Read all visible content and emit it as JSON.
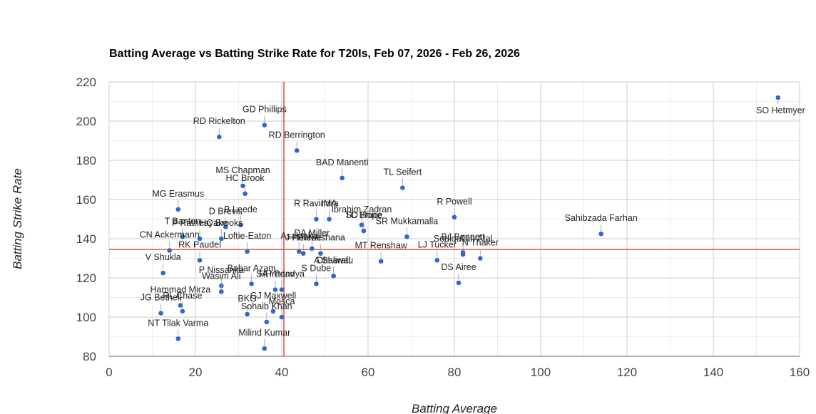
{
  "chart_data": {
    "type": "scatter",
    "title": "Batting Average vs Batting Strike Rate for T20Is, Feb 07, 2026 - Feb 26, 2026",
    "xlabel": "Batting Average",
    "ylabel": "Batting Strike Rate",
    "xlim": [
      0,
      160
    ],
    "ylim": [
      80,
      220
    ],
    "x_ticks": [
      0,
      20,
      40,
      60,
      80,
      100,
      120,
      140,
      160
    ],
    "y_ticks": [
      80,
      100,
      120,
      140,
      160,
      180,
      200,
      220
    ],
    "grid": true,
    "reference_lines": {
      "x": 40.5,
      "y": 134.5,
      "color": "#d93025"
    },
    "point_color": "#3366cc",
    "points": [
      {
        "label": "SO Hetmyer",
        "x": 155,
        "y": 212
      },
      {
        "label": "GD Phillips",
        "x": 36,
        "y": 198
      },
      {
        "label": "RD Rickelton",
        "x": 25.5,
        "y": 192
      },
      {
        "label": "RD Berrington",
        "x": 43.5,
        "y": 185
      },
      {
        "label": "BAD Manenti",
        "x": 54,
        "y": 171
      },
      {
        "label": "MS Chapman",
        "x": 31,
        "y": 167
      },
      {
        "label": "TL Seifert",
        "x": 68,
        "y": 166
      },
      {
        "label": "HC Brook",
        "x": 31.5,
        "y": 163
      },
      {
        "label": "MG Erasmus",
        "x": 16,
        "y": 155
      },
      {
        "label": "R Powell",
        "x": 80,
        "y": 151
      },
      {
        "label": "R Ravindra",
        "x": 48,
        "y": 150
      },
      {
        "label": "IMA",
        "x": 51,
        "y": 150
      },
      {
        "label": "Ibrahim Zadran",
        "x": 58.5,
        "y": 147
      },
      {
        "label": "B Leede",
        "x": 30.5,
        "y": 147
      },
      {
        "label": "D Brevis",
        "x": 27,
        "y": 146
      },
      {
        "label": "TC Bruce",
        "x": 59,
        "y": 144
      },
      {
        "label": "SD Hope",
        "x": 59,
        "y": 144
      },
      {
        "label": "Sahibzada Farhan",
        "x": 114,
        "y": 142.5
      },
      {
        "label": "T Banton",
        "x": 17,
        "y": 141
      },
      {
        "label": "SR Mukkamalla",
        "x": 69,
        "y": 141
      },
      {
        "label": "DA Miller",
        "x": 47,
        "y": 135
      },
      {
        "label": "HC Brooks",
        "x": 26,
        "y": 140
      },
      {
        "label": "Loftie-Eaton",
        "x": 32,
        "y": 133.5
      },
      {
        "label": "P Rathnayake",
        "x": 21,
        "y": 140
      },
      {
        "label": "BJ Bennett",
        "x": 82,
        "y": 133
      },
      {
        "label": "MT Renshaw",
        "x": 63,
        "y": 128.5
      },
      {
        "label": "N Thaker",
        "x": 86,
        "y": 130
      },
      {
        "label": "Sediqullah Atal",
        "x": 82,
        "y": 132
      },
      {
        "label": "Asalanka",
        "x": 44,
        "y": 133.5
      },
      {
        "label": "J Hearne",
        "x": 45,
        "y": 132.5
      },
      {
        "label": "Theekshana",
        "x": 49,
        "y": 132.5
      },
      {
        "label": "LJ Tucker",
        "x": 76,
        "y": 129
      },
      {
        "label": "CN Ackermann",
        "x": 14,
        "y": 134
      },
      {
        "label": "RK Paudel",
        "x": 21,
        "y": 129
      },
      {
        "label": "A Sharafu",
        "x": 52,
        "y": 121
      },
      {
        "label": "Dhaliwal",
        "x": 52,
        "y": 121
      },
      {
        "label": "V Shukla",
        "x": 12.5,
        "y": 122.5
      },
      {
        "label": "S Dube",
        "x": 48,
        "y": 117
      },
      {
        "label": "DS Airee",
        "x": 81,
        "y": 117.5
      },
      {
        "label": "HH Pandya",
        "x": 40,
        "y": 114
      },
      {
        "label": "P Nissanka",
        "x": 26,
        "y": 116
      },
      {
        "label": "Babar Azam",
        "x": 33,
        "y": 117
      },
      {
        "label": "Wasim Ali",
        "x": 26,
        "y": 113
      },
      {
        "label": "SA Yadav",
        "x": 38.5,
        "y": 114
      },
      {
        "label": "Hammad Mirza",
        "x": 16.5,
        "y": 106
      },
      {
        "label": "RL Chase",
        "x": 17,
        "y": 103
      },
      {
        "label": "JG Bethell",
        "x": 12,
        "y": 102
      },
      {
        "label": "GJ Maxwell",
        "x": 38,
        "y": 103
      },
      {
        "label": "BKG",
        "x": 32,
        "y": 101.5
      },
      {
        "label": "Mosca",
        "x": 40,
        "y": 100
      },
      {
        "label": "Sohaib Khan",
        "x": 36.5,
        "y": 97.5
      },
      {
        "label": "NT Tilak Varma",
        "x": 16,
        "y": 89
      },
      {
        "label": "Milind Kumar",
        "x": 36,
        "y": 84
      }
    ]
  }
}
